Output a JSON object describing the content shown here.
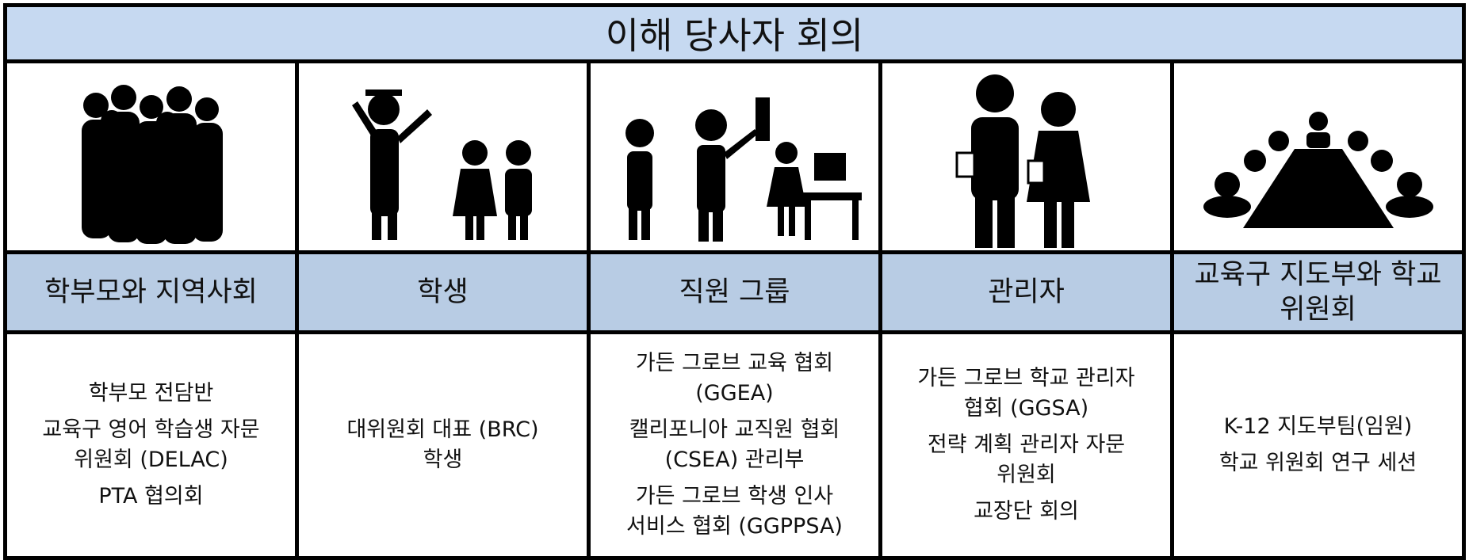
{
  "title": "이해 당사자 회의",
  "columns": [
    {
      "header": "학부모와 지역사회",
      "items": [
        [
          "학부모 전담반"
        ],
        [
          "교육구 영어 학습생 자문",
          "위원회 (DELAC)"
        ],
        [
          "PTA 협의회"
        ]
      ]
    },
    {
      "header": "학생",
      "items": [
        [
          "대위원회 대표 (BRC)",
          "학생"
        ]
      ]
    },
    {
      "header": "직원 그룹",
      "items": [
        [
          "가든 그로브 교육 협회",
          "(GGEA)"
        ],
        [
          "캘리포니아 교직원 협회",
          "(CSEA) 관리부"
        ],
        [
          "가든 그로브 학생 인사",
          "서비스 협회 (GGPPSA)"
        ]
      ]
    },
    {
      "header": "관리자",
      "items": [
        [
          "가든 그로브 학교 관리자",
          "협회 (GGSA)"
        ],
        [
          "전략 계획 관리자 자문",
          "위원회"
        ],
        [
          "교장단 회의"
        ]
      ]
    },
    {
      "header": "교육구 지도부와 학교 위원회",
      "items": [
        [
          "K-12 지도부팀(임원)"
        ],
        [
          "학교 위원회 연구 세션"
        ]
      ]
    }
  ]
}
